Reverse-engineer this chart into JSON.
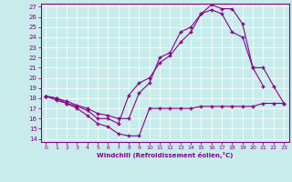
{
  "xlabel": "Windchill (Refroidissement éolien,°C)",
  "bg_color": "#c8ecec",
  "line_color": "#880088",
  "xlim": [
    -0.5,
    23.5
  ],
  "ylim": [
    13.7,
    27.3
  ],
  "xticks": [
    0,
    1,
    2,
    3,
    4,
    5,
    6,
    7,
    8,
    9,
    10,
    11,
    12,
    13,
    14,
    15,
    16,
    17,
    18,
    19,
    20,
    21,
    22,
    23
  ],
  "yticks": [
    14,
    15,
    16,
    17,
    18,
    19,
    20,
    21,
    22,
    23,
    24,
    25,
    26,
    27
  ],
  "series1_x": [
    0,
    1,
    2,
    3,
    4,
    5,
    6,
    7,
    8,
    9,
    10,
    11,
    12,
    13,
    14,
    15,
    16,
    17,
    18,
    19,
    20,
    21,
    22,
    23
  ],
  "series1_y": [
    18.2,
    17.8,
    17.5,
    17.0,
    16.3,
    15.5,
    15.2,
    14.5,
    14.3,
    14.3,
    17.0,
    17.0,
    17.0,
    17.0,
    17.0,
    17.2,
    17.2,
    17.2,
    17.2,
    17.2,
    17.2,
    17.5,
    17.5,
    17.5
  ],
  "series2_x": [
    0,
    1,
    2,
    3,
    4,
    5,
    6,
    7,
    8,
    9,
    10,
    11,
    12,
    13,
    14,
    15,
    16,
    17,
    18,
    19,
    20,
    21,
    22,
    23
  ],
  "series2_y": [
    18.2,
    18.0,
    17.5,
    17.2,
    16.8,
    16.0,
    16.0,
    15.5,
    18.3,
    19.5,
    20.0,
    21.5,
    22.2,
    23.5,
    24.5,
    26.3,
    26.7,
    26.3,
    24.5,
    24.0,
    21.0,
    19.2,
    null,
    null
  ],
  "series3_x": [
    0,
    1,
    2,
    3,
    4,
    5,
    6,
    7,
    8,
    9,
    10,
    11,
    12,
    13,
    14,
    15,
    16,
    17,
    18,
    19,
    20,
    21,
    22,
    23
  ],
  "series3_y": [
    18.2,
    18.0,
    17.7,
    17.3,
    17.0,
    16.5,
    16.3,
    16.0,
    16.0,
    18.5,
    19.5,
    22.0,
    22.5,
    24.5,
    25.0,
    26.3,
    27.2,
    26.8,
    26.8,
    25.3,
    21.0,
    21.0,
    19.2,
    17.5
  ]
}
